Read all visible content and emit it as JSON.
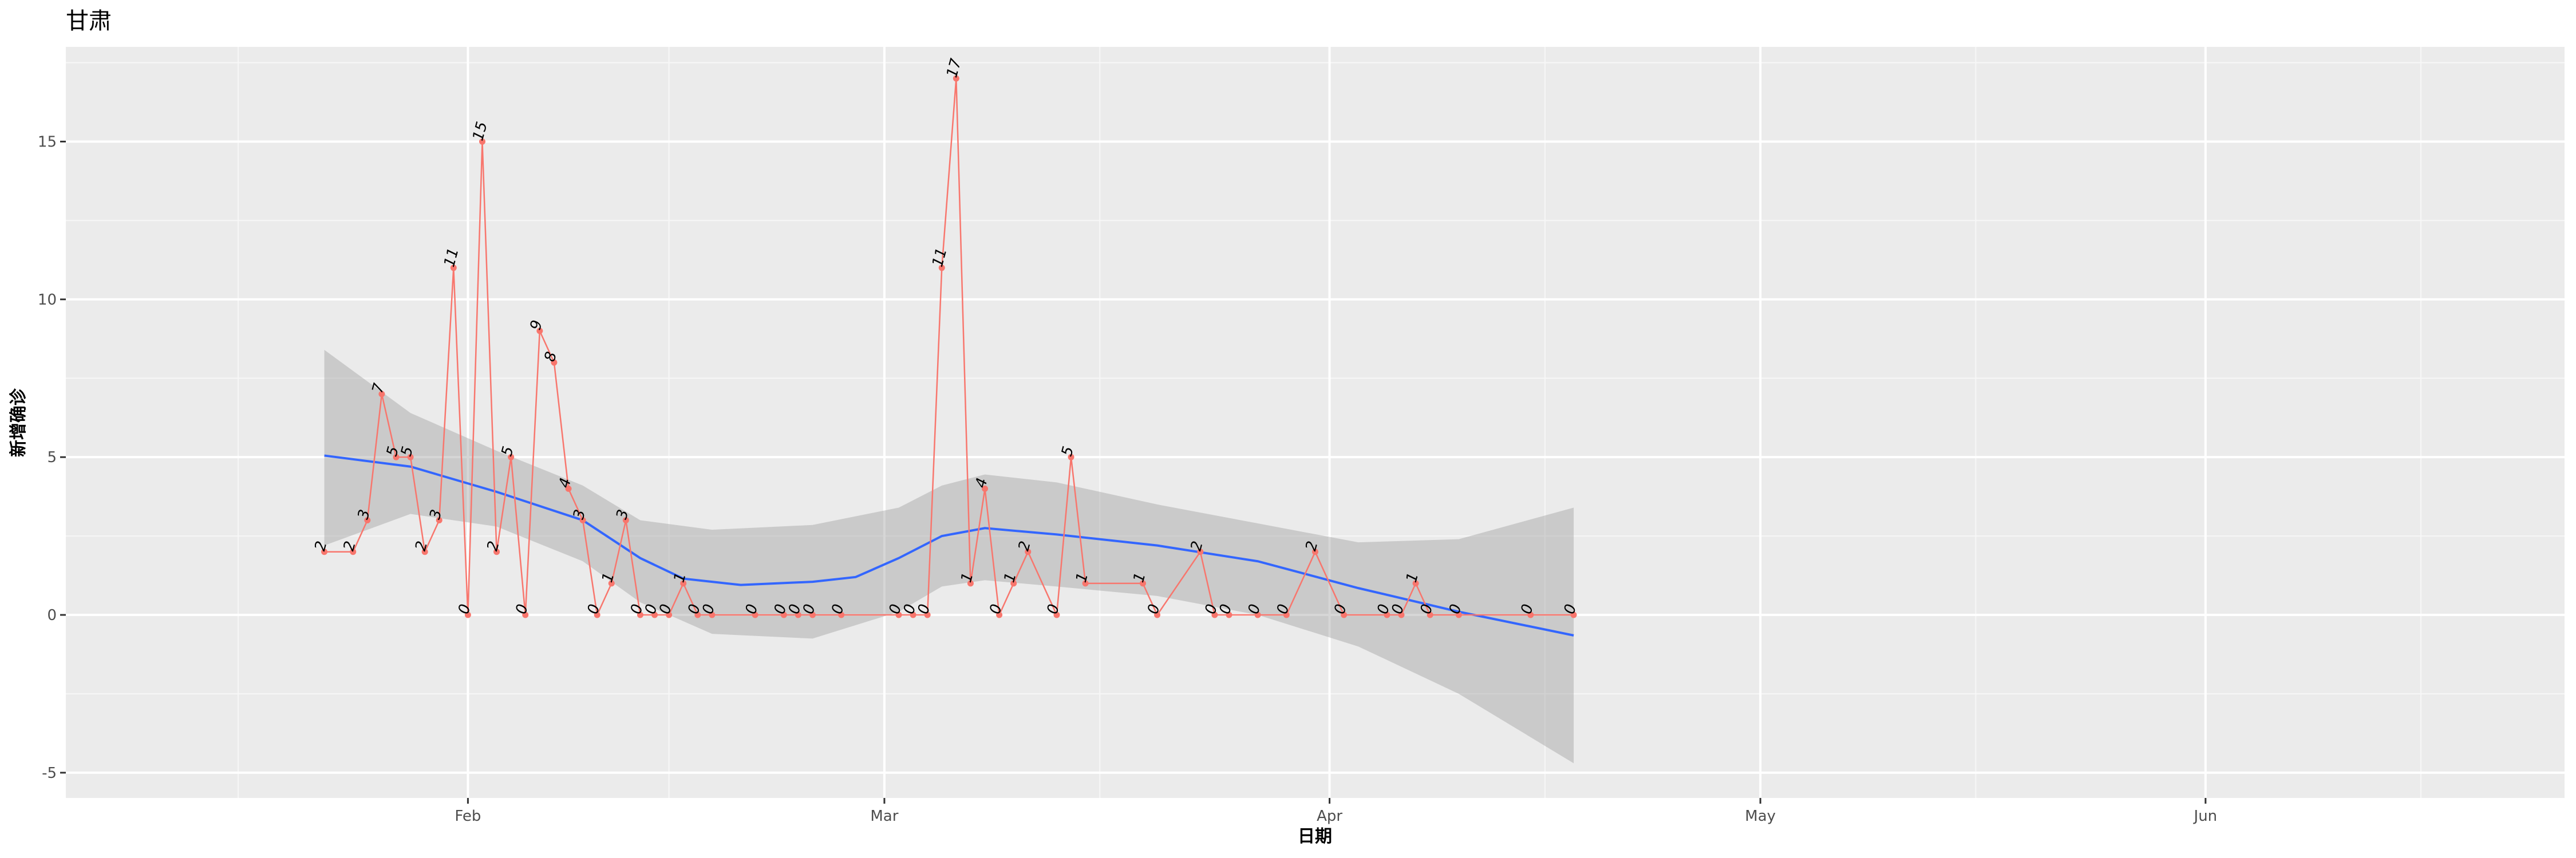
{
  "chart_data": {
    "type": "line",
    "title": "甘肃",
    "xlabel": "日期",
    "ylabel": "新增确诊",
    "x_ticks": [
      "Feb",
      "Mar",
      "Apr",
      "May",
      "Jun"
    ],
    "y_ticks": [
      "-5",
      "0",
      "5",
      "10",
      "15"
    ],
    "xlim": [
      "2020-01-04",
      "2020-06-26"
    ],
    "ylim": [
      -5.8,
      18
    ],
    "grid": true,
    "series": [
      {
        "type": "line+points+labels",
        "color": "#F8766D",
        "points": [
          [
            "2020-01-22",
            2
          ],
          [
            "2020-01-24",
            2
          ],
          [
            "2020-01-25",
            3
          ],
          [
            "2020-01-26",
            7
          ],
          [
            "2020-01-27",
            5
          ],
          [
            "2020-01-28",
            5
          ],
          [
            "2020-01-29",
            2
          ],
          [
            "2020-01-30",
            3
          ],
          [
            "2020-01-31",
            11
          ],
          [
            "2020-02-01",
            0
          ],
          [
            "2020-02-02",
            15
          ],
          [
            "2020-02-03",
            2
          ],
          [
            "2020-02-04",
            5
          ],
          [
            "2020-02-05",
            0
          ],
          [
            "2020-02-06",
            9
          ],
          [
            "2020-02-07",
            8
          ],
          [
            "2020-02-08",
            4
          ],
          [
            "2020-02-09",
            3
          ],
          [
            "2020-02-10",
            0
          ],
          [
            "2020-02-11",
            1
          ],
          [
            "2020-02-12",
            3
          ],
          [
            "2020-02-13",
            0
          ],
          [
            "2020-02-14",
            0
          ],
          [
            "2020-02-15",
            0
          ],
          [
            "2020-02-16",
            1
          ],
          [
            "2020-02-17",
            0
          ],
          [
            "2020-02-18",
            0
          ],
          [
            "2020-02-21",
            0
          ],
          [
            "2020-02-23",
            0
          ],
          [
            "2020-02-24",
            0
          ],
          [
            "2020-02-25",
            0
          ],
          [
            "2020-02-27",
            0
          ],
          [
            "2020-03-02",
            0
          ],
          [
            "2020-03-03",
            0
          ],
          [
            "2020-03-04",
            0
          ],
          [
            "2020-03-05",
            11
          ],
          [
            "2020-03-06",
            17
          ],
          [
            "2020-03-07",
            1
          ],
          [
            "2020-03-08",
            4
          ],
          [
            "2020-03-09",
            0
          ],
          [
            "2020-03-10",
            1
          ],
          [
            "2020-03-11",
            2
          ],
          [
            "2020-03-13",
            0
          ],
          [
            "2020-03-14",
            5
          ],
          [
            "2020-03-15",
            1
          ],
          [
            "2020-03-19",
            1
          ],
          [
            "2020-03-20",
            0
          ],
          [
            "2020-03-23",
            2
          ],
          [
            "2020-03-24",
            0
          ],
          [
            "2020-03-25",
            0
          ],
          [
            "2020-03-27",
            0
          ],
          [
            "2020-03-29",
            0
          ],
          [
            "2020-03-31",
            2
          ],
          [
            "2020-04-02",
            0
          ],
          [
            "2020-04-05",
            0
          ],
          [
            "2020-04-06",
            0
          ],
          [
            "2020-04-07",
            1
          ],
          [
            "2020-04-08",
            0
          ],
          [
            "2020-04-10",
            0
          ],
          [
            "2020-04-15",
            0
          ],
          [
            "2020-04-18",
            0
          ]
        ]
      },
      {
        "type": "smooth",
        "color": "#3366FF",
        "points": [
          [
            "2020-01-22",
            5.05
          ],
          [
            "2020-01-28",
            4.7
          ],
          [
            "2020-02-03",
            3.9
          ],
          [
            "2020-02-09",
            3.0
          ],
          [
            "2020-02-13",
            1.8
          ],
          [
            "2020-02-16",
            1.15
          ],
          [
            "2020-02-20",
            0.95
          ],
          [
            "2020-02-25",
            1.05
          ],
          [
            "2020-02-28",
            1.2
          ],
          [
            "2020-03-02",
            1.8
          ],
          [
            "2020-03-05",
            2.5
          ],
          [
            "2020-03-08",
            2.75
          ],
          [
            "2020-03-13",
            2.55
          ],
          [
            "2020-03-20",
            2.2
          ],
          [
            "2020-03-27",
            1.7
          ],
          [
            "2020-04-03",
            0.85
          ],
          [
            "2020-04-10",
            0.1
          ],
          [
            "2020-04-18",
            -0.65
          ]
        ]
      },
      {
        "type": "ribbon",
        "color": "#999999",
        "upper": [
          [
            "2020-01-22",
            8.4
          ],
          [
            "2020-01-28",
            6.4
          ],
          [
            "2020-02-03",
            5.2
          ],
          [
            "2020-02-09",
            4.1
          ],
          [
            "2020-02-13",
            3.0
          ],
          [
            "2020-02-18",
            2.7
          ],
          [
            "2020-02-25",
            2.85
          ],
          [
            "2020-03-02",
            3.4
          ],
          [
            "2020-03-05",
            4.1
          ],
          [
            "2020-03-08",
            4.45
          ],
          [
            "2020-03-13",
            4.2
          ],
          [
            "2020-03-20",
            3.5
          ],
          [
            "2020-03-27",
            2.9
          ],
          [
            "2020-04-03",
            2.3
          ],
          [
            "2020-04-10",
            2.4
          ],
          [
            "2020-04-18",
            3.4
          ]
        ],
        "lower": [
          [
            "2020-01-22",
            2.2
          ],
          [
            "2020-01-28",
            3.2
          ],
          [
            "2020-02-03",
            2.8
          ],
          [
            "2020-02-09",
            1.7
          ],
          [
            "2020-02-13",
            0.4
          ],
          [
            "2020-02-18",
            -0.6
          ],
          [
            "2020-02-25",
            -0.75
          ],
          [
            "2020-03-02",
            0.1
          ],
          [
            "2020-03-05",
            0.9
          ],
          [
            "2020-03-08",
            1.1
          ],
          [
            "2020-03-13",
            0.9
          ],
          [
            "2020-03-20",
            0.6
          ],
          [
            "2020-03-27",
            0.0
          ],
          [
            "2020-04-03",
            -1.0
          ],
          [
            "2020-04-10",
            -2.5
          ],
          [
            "2020-04-18",
            -4.7
          ]
        ]
      }
    ]
  }
}
